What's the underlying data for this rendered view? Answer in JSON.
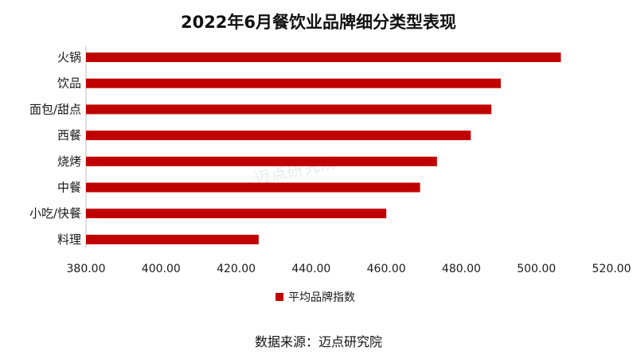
{
  "chart_data": {
    "type": "bar",
    "orientation": "horizontal",
    "title": "2022年6月餐饮业品牌细分类型表现",
    "categories": [
      "火锅",
      "饮品",
      "面包/甜点",
      "西餐",
      "烧烤",
      "中餐",
      "小吃/快餐",
      "料理"
    ],
    "series": [
      {
        "name": "平均品牌指数",
        "values": [
          506.5,
          490.5,
          488.0,
          482.5,
          473.5,
          469.0,
          460.0,
          426.0
        ]
      }
    ],
    "xlim": [
      380,
      520
    ],
    "xticks": [
      "380.00",
      "400.00",
      "420.00",
      "440.00",
      "460.00",
      "480.00",
      "500.00",
      "520.00"
    ],
    "grid": false,
    "legend_position": "bottom",
    "bar_color": "#c00000"
  },
  "watermark": "迈点研究院",
  "source": "数据来源：迈点研究院"
}
